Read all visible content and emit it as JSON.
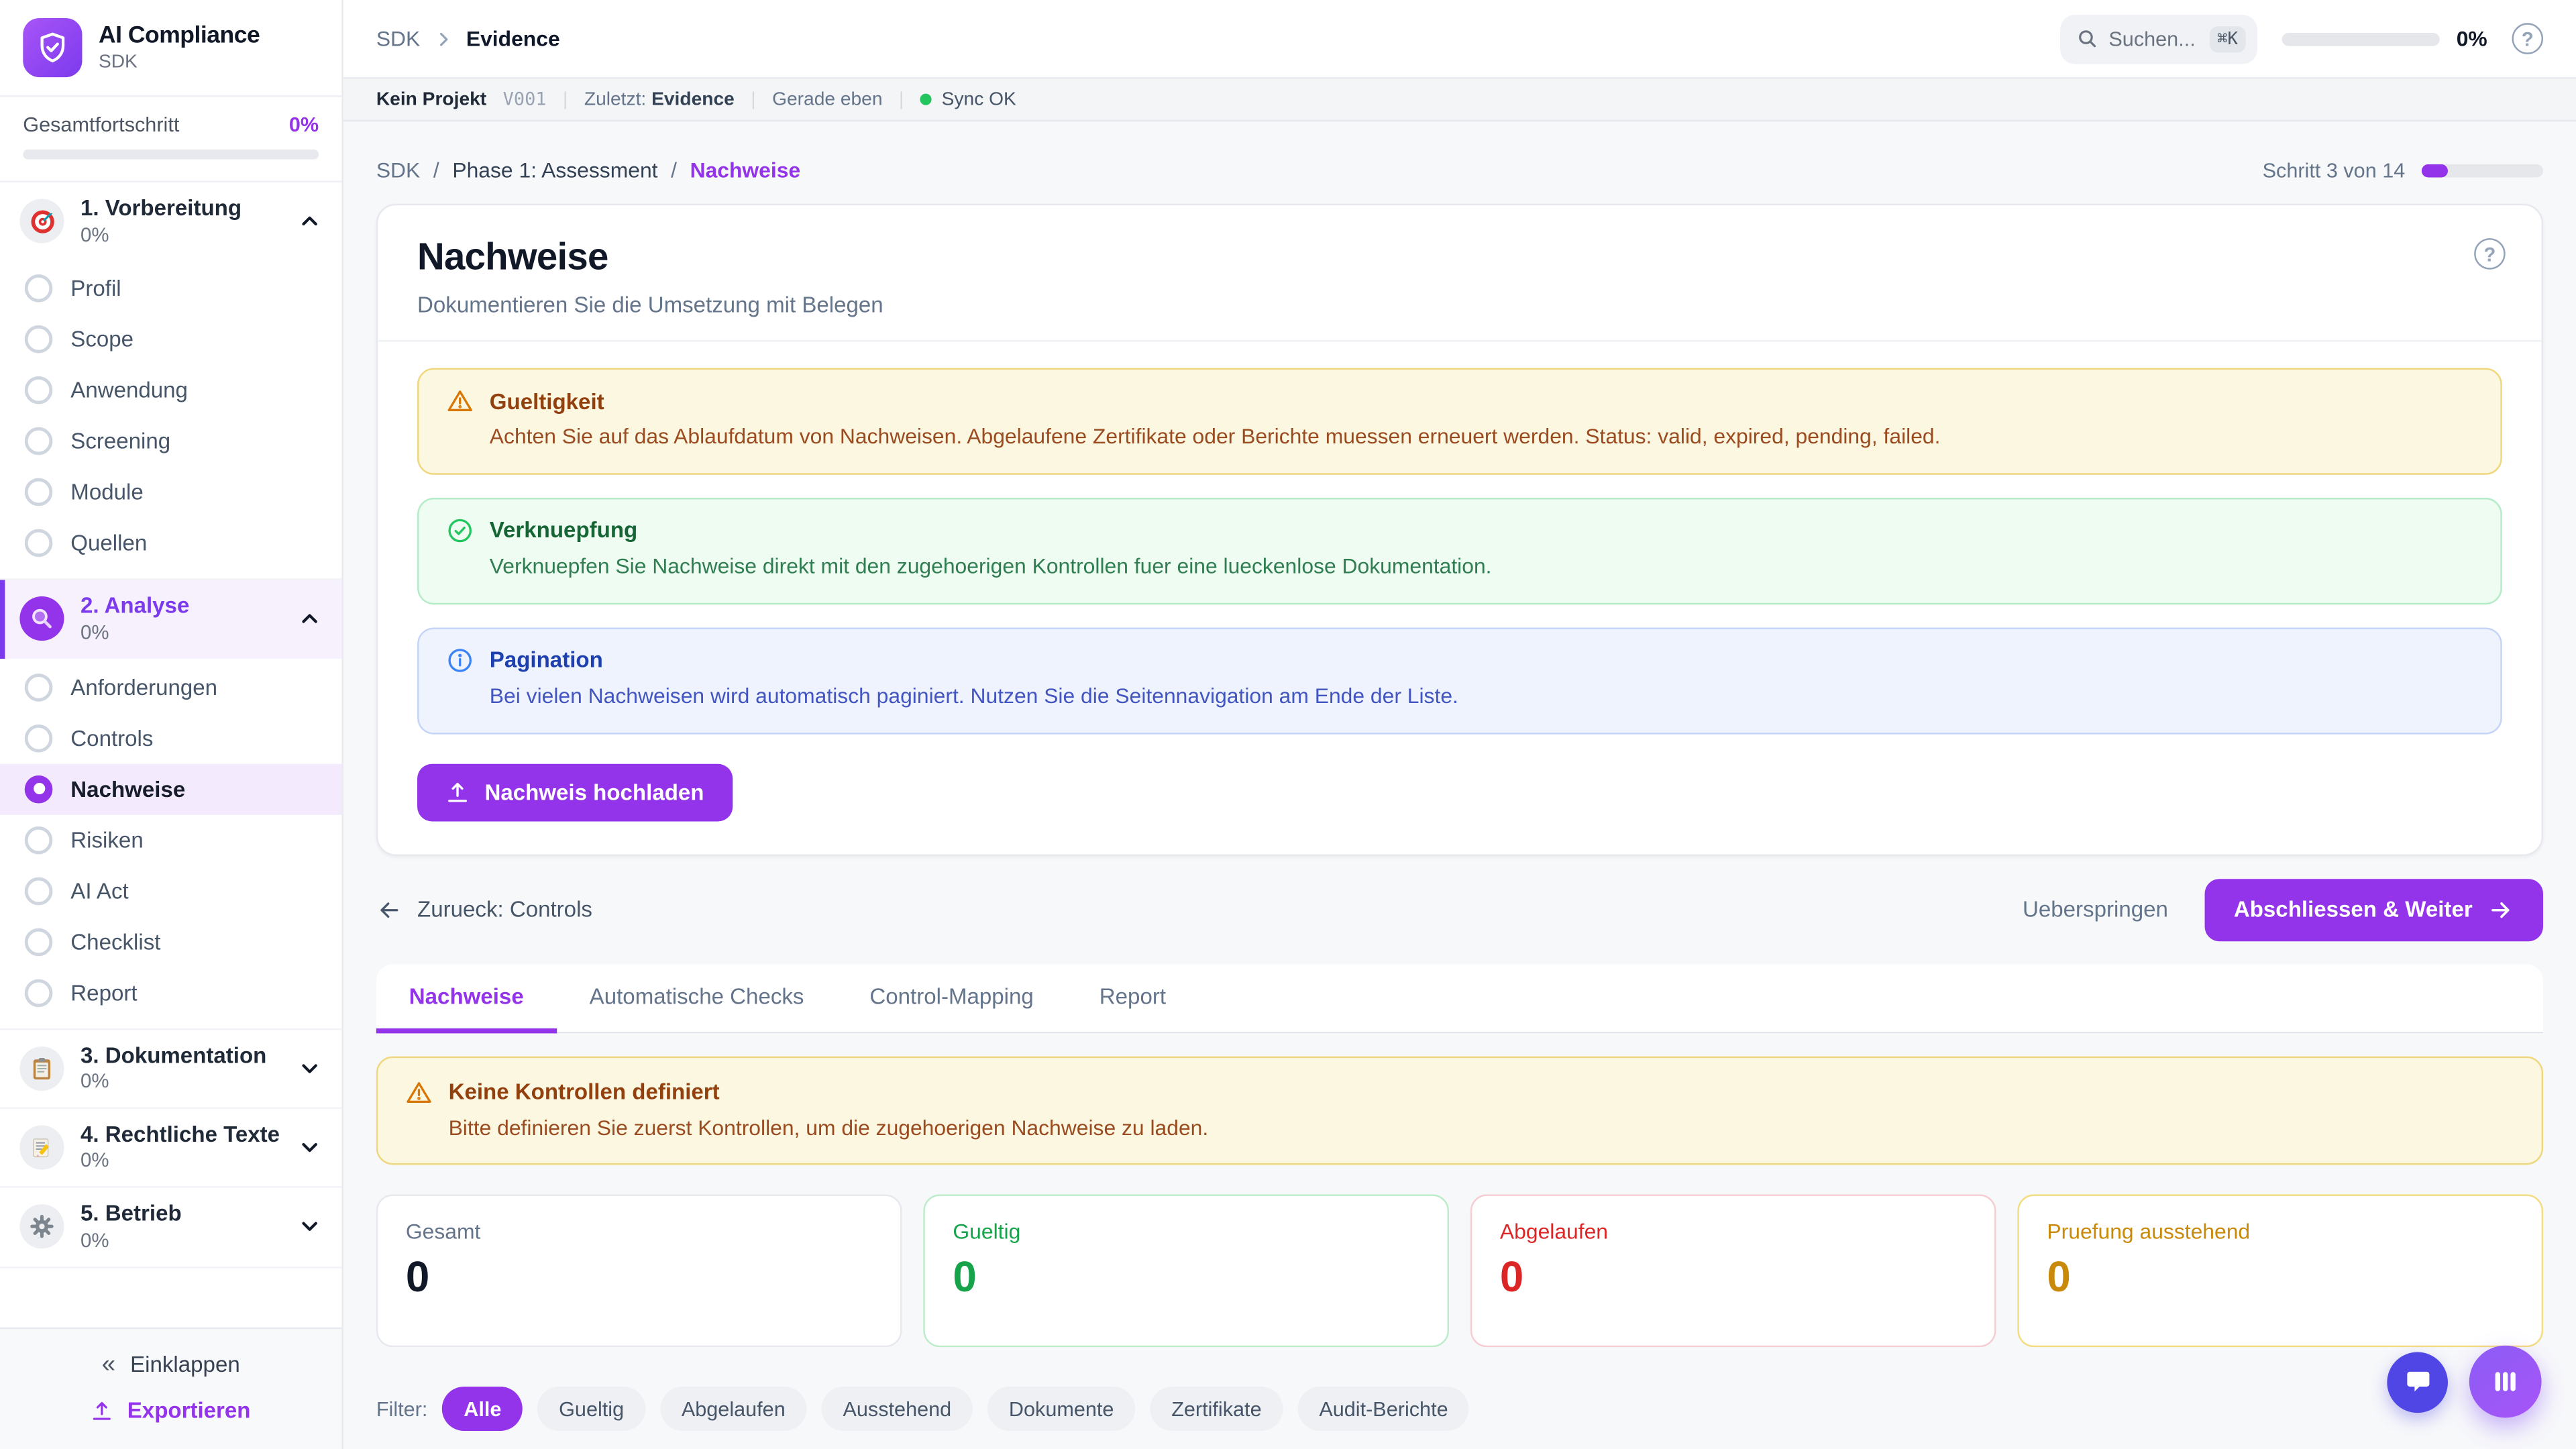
{
  "colors": {
    "accent": "#9333ea",
    "accent_dark": "#7c3aed",
    "sync_ok": "#22c55e",
    "warning_bg": "#fcf7e1",
    "warning_border": "#efd77e",
    "warning_text": "#92400e",
    "success_bg": "#eefcf2",
    "success_text": "#166534",
    "info_bg": "#eef3fd",
    "info_text": "#1e40af",
    "stat_green": "#16a34a",
    "stat_red": "#dc2626",
    "stat_amber": "#c9890a"
  },
  "sidebar": {
    "app_title": "AI Compliance",
    "app_subtitle": "SDK",
    "logo_icon": "shield-check-icon",
    "overall_label": "Gesamtfortschritt",
    "overall_percent": "0%",
    "overall_value": 0,
    "sections": [
      {
        "label": "1. Vorbereitung",
        "percent": "0%",
        "icon": "target-icon",
        "expanded": true,
        "items": [
          "Profil",
          "Scope",
          "Anwendung",
          "Screening",
          "Module",
          "Quellen"
        ]
      },
      {
        "label": "2. Analyse",
        "percent": "0%",
        "icon": "magnifier-icon",
        "expanded": true,
        "items": [
          "Anforderungen",
          "Controls",
          "Nachweise",
          "Risiken",
          "AI Act",
          "Checklist",
          "Report"
        ],
        "selected_item": "Nachweise"
      },
      {
        "label": "3. Dokumentation",
        "percent": "0%",
        "icon": "clipboard-icon",
        "expanded": false,
        "items": []
      },
      {
        "label": "4. Rechtliche Texte",
        "percent": "0%",
        "icon": "memo-pencil-icon",
        "expanded": false,
        "items": []
      },
      {
        "label": "5. Betrieb",
        "percent": "0%",
        "icon": "gear-icon",
        "expanded": false,
        "items": []
      }
    ],
    "collapse_label": "Einklappen",
    "collapse_glyph": "«",
    "export_label": "Exportieren"
  },
  "header": {
    "breadcrumb_root": "SDK",
    "breadcrumb_current": "Evidence",
    "search_placeholder": "Suchen...",
    "search_shortcut": "⌘K",
    "progress_percent": "0%",
    "progress_value": 0,
    "help_glyph": "?"
  },
  "statusbar": {
    "project": "Kein Projekt",
    "version": "V001",
    "separator": "|",
    "last_label": "Zuletzt:",
    "last_value": "Evidence",
    "time": "Gerade eben",
    "sync": "Sync OK"
  },
  "page": {
    "breadcrumb": [
      "SDK",
      "Phase 1: Assessment",
      "Nachweise"
    ],
    "breadcrumb_separator": "/",
    "step_label": "Schritt 3 von 14",
    "step_current": 3,
    "step_total": 14,
    "step_percent_value": 21.4,
    "title": "Nachweise",
    "subtitle": "Dokumentieren Sie die Umsetzung mit Belegen",
    "help_glyph": "?",
    "alerts": [
      {
        "type": "warning",
        "icon": "warning-triangle-icon",
        "title": "Gueltigkeit",
        "text": "Achten Sie auf das Ablaufdatum von Nachweisen. Abgelaufene Zertifikate oder Berichte muessen erneuert werden. Status: valid, expired, pending, failed."
      },
      {
        "type": "success",
        "icon": "check-circle-icon",
        "title": "Verknuepfung",
        "text": "Verknuepfen Sie Nachweise direkt mit den zugehoerigen Kontrollen fuer eine lueckenlose Dokumentation."
      },
      {
        "type": "info",
        "icon": "info-circle-icon",
        "title": "Pagination",
        "text": "Bei vielen Nachweisen wird automatisch paginiert. Nutzen Sie die Seitennavigation am Ende der Liste."
      }
    ],
    "upload_button": "Nachweis hochladen",
    "back_link": "Zurueck: Controls",
    "skip_button": "Ueberspringen",
    "next_button": "Abschliessen & Weiter",
    "tabs": [
      "Nachweise",
      "Automatische Checks",
      "Control-Mapping",
      "Report"
    ],
    "active_tab": "Nachweise",
    "empty_warning": {
      "title": "Keine Kontrollen definiert",
      "text": "Bitte definieren Sie zuerst Kontrollen, um die zugehoerigen Nachweise zu laden."
    },
    "stats": [
      {
        "label": "Gesamt",
        "value": "0",
        "color": "default"
      },
      {
        "label": "Gueltig",
        "value": "0",
        "color": "green"
      },
      {
        "label": "Abgelaufen",
        "value": "0",
        "color": "red"
      },
      {
        "label": "Pruefung ausstehend",
        "value": "0",
        "color": "amber"
      }
    ],
    "filter_label": "Filter:",
    "filters": [
      "Alle",
      "Gueltig",
      "Abgelaufen",
      "Ausstehend",
      "Dokumente",
      "Zertifikate",
      "Audit-Berichte"
    ],
    "active_filter": "Alle"
  }
}
